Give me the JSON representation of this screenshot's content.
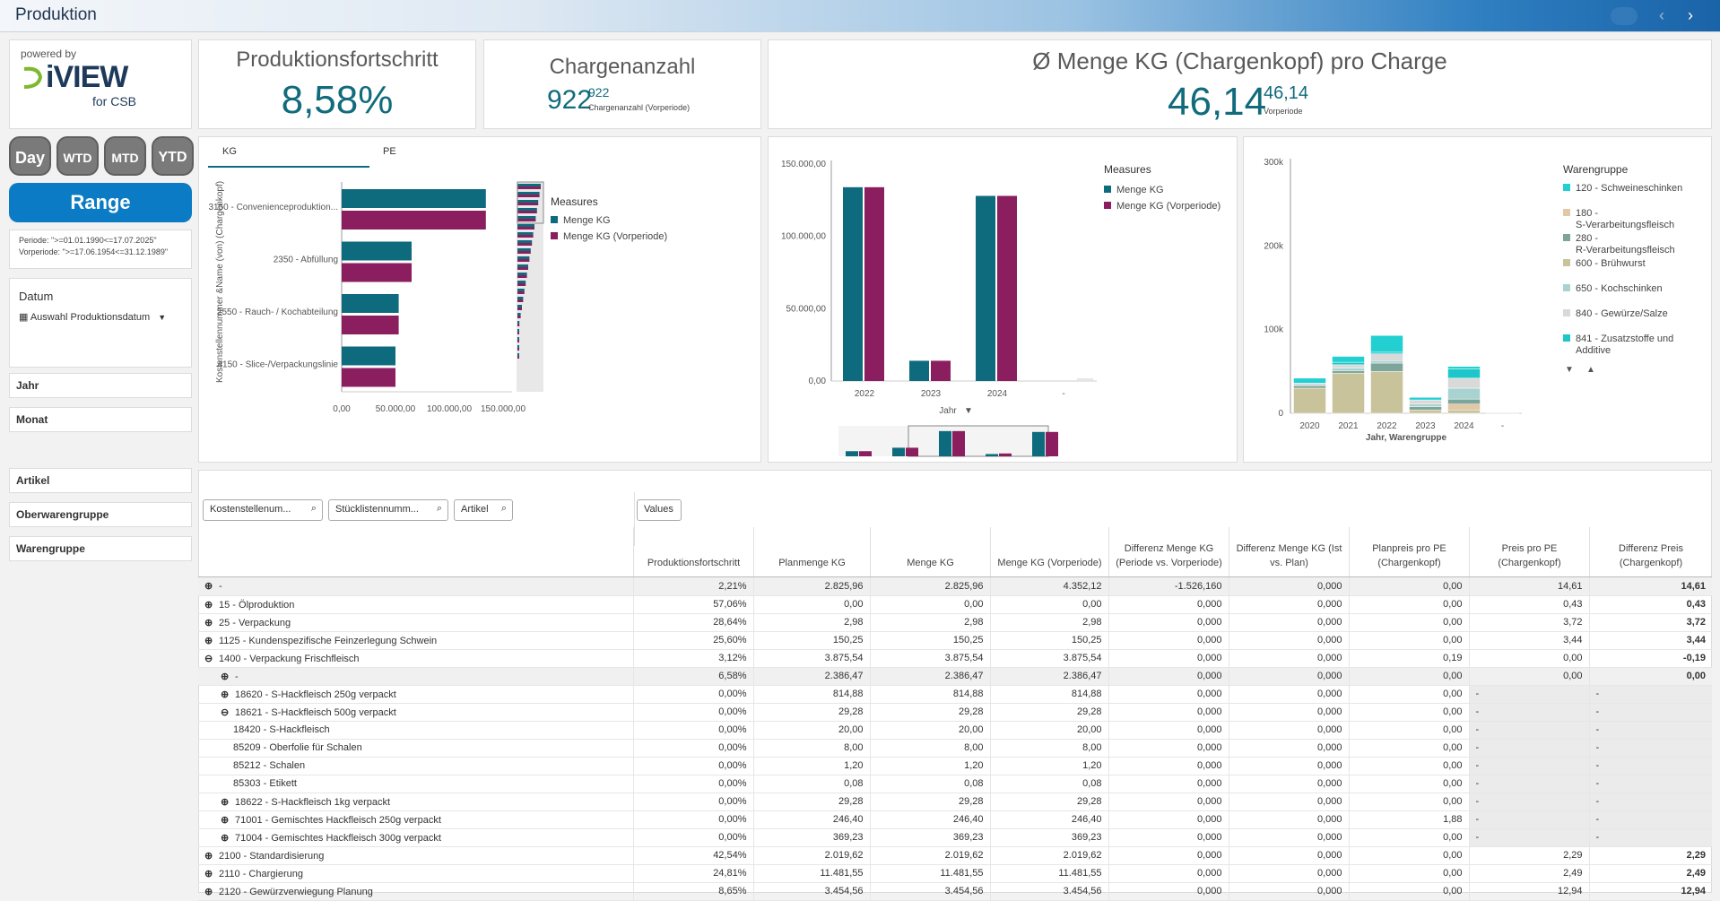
{
  "app": {
    "title": "Produktion"
  },
  "logo": {
    "powered_by": "powered by",
    "name": "iVIEW",
    "sub": "for CSB"
  },
  "kpis": [
    {
      "title": "Produktionsfortschritt",
      "value": "8,58%"
    },
    {
      "title": "Chargenanzahl",
      "value": "922",
      "sup": "922",
      "sub": "Chargenanzahl (Vorperiode)"
    },
    {
      "title": "Ø Menge KG (Chargenkopf) pro Charge",
      "value": "46,14",
      "sup": "46,14",
      "sub": "Vorperiode"
    }
  ],
  "period_buttons": [
    "Day",
    "WTD",
    "MTD",
    "YTD"
  ],
  "range_label": "Range",
  "period_info": {
    "line1": "Periode: \">=01.01.1990<=17.07.2025\"",
    "line2": "Vorperiode: \">=17.06.1954<=31.12.1989\""
  },
  "datum": {
    "title": "Datum",
    "selector": "Auswahl Produktionsdatum"
  },
  "filters": [
    "Jahr",
    "Monat",
    "Artikel",
    "Oberwarengruppe",
    "Warengruppe"
  ],
  "chart1_tabs": [
    "KG",
    "PE"
  ],
  "colors": {
    "teal": "#0e6b7e",
    "purple": "#8b1e5e",
    "accent": "#0a7bc4"
  },
  "chart_data": [
    {
      "type": "bar",
      "orientation": "horizontal",
      "ylabel": "Kostenstellennummer &Name (von) (Chargenkopf)",
      "categories": [
        "3150 - Convenienceproduktion...",
        "2350 - Abfüllung",
        "2550 - Rauch- / Kochabteilung",
        "4150 - Slice-/Verpackungslinie"
      ],
      "series": [
        {
          "name": "Menge KG",
          "values": [
            134000,
            65000,
            53000,
            50000
          ]
        },
        {
          "name": "Menge KG (Vorperiode)",
          "values": [
            134000,
            65000,
            53000,
            50000
          ]
        }
      ],
      "xticks": [
        "0,00",
        "50.000,00",
        "100.000,00",
        "150.000,00"
      ],
      "xlim": [
        0,
        150000
      ],
      "legend_title": "Measures"
    },
    {
      "type": "bar",
      "categories": [
        "2022",
        "2023",
        "2024",
        "-"
      ],
      "series": [
        {
          "name": "Menge KG",
          "values": [
            134000,
            14000,
            128000,
            0
          ]
        },
        {
          "name": "Menge KG (Vorperiode)",
          "values": [
            134000,
            14000,
            128000,
            0
          ]
        }
      ],
      "yticks": [
        "0,00",
        "50.000,00",
        "100.000,00",
        "150.000,00"
      ],
      "ylim": [
        0,
        150000
      ],
      "xlabel": "Jahr",
      "legend_title": "Measures"
    },
    {
      "type": "bar",
      "stacked": true,
      "categories": [
        "2020",
        "2021",
        "2022",
        "2023",
        "2024",
        "-"
      ],
      "xlabel": "Jahr, Warengruppe",
      "yticks": [
        "0",
        "100k",
        "200k",
        "300k"
      ],
      "ylim": [
        0,
        300000
      ],
      "legend_title": "Warengruppe",
      "series": [
        {
          "name": "600 - Brühwurst",
          "color": "#c8c39b",
          "values": [
            30000,
            48000,
            50000,
            4000,
            4000,
            0
          ]
        },
        {
          "name": "180 - S-Verarbeitungsfleisch",
          "color": "#e3c8a6",
          "values": [
            0,
            0,
            0,
            0,
            7000,
            0
          ]
        },
        {
          "name": "280 - R-Verarbeitungsfleisch",
          "color": "#7ea59a",
          "values": [
            3000,
            3000,
            10000,
            4000,
            6000,
            0
          ]
        },
        {
          "name": "650 - Kochschinken",
          "color": "#a8d3d1",
          "values": [
            0,
            3000,
            3000,
            3000,
            13000,
            0
          ]
        },
        {
          "name": "840 - Gewürze/Salze",
          "color": "#d9d9d9",
          "values": [
            3000,
            4000,
            8000,
            5000,
            12000,
            1000
          ]
        },
        {
          "name": "841 - Zusatzstoffe und Additive",
          "color": "#1dc7c9",
          "values": [
            0,
            3000,
            2000,
            0,
            11000,
            0
          ]
        },
        {
          "name": "120 - Schweineschinken",
          "color": "#22d0d2",
          "values": [
            6000,
            7000,
            20000,
            3000,
            3000,
            0
          ]
        }
      ]
    }
  ],
  "table": {
    "search_boxes": [
      "Kostenstellenum...",
      "Stücklistennumm...",
      "Artikel"
    ],
    "values_label": "Values",
    "columns": [
      "Produktionsfortschritt",
      "Planmenge KG",
      "Menge KG",
      "Menge KG (Vorperiode)",
      "Differenz Menge KG (Periode vs. Vorperiode)",
      "Differenz Menge KG (Ist vs. Plan)",
      "Planpreis pro PE (Chargenkopf)",
      "Preis pro PE (Chargenkopf)",
      "Differenz Preis (Chargenkopf)"
    ],
    "rows": [
      {
        "indent": 0,
        "icon": "+",
        "label": "-",
        "vals": [
          "2,21%",
          "2.825,96",
          "2.825,96",
          "4.352,12",
          "-1.526,160",
          "0,000",
          "0,00",
          "14,61",
          "14,61"
        ],
        "last": "red"
      },
      {
        "indent": 0,
        "icon": "+",
        "label": "15 - Ölproduktion",
        "vals": [
          "57,06%",
          "0,00",
          "0,00",
          "0,00",
          "0,000",
          "0,000",
          "0,00",
          "0,43",
          "0,43"
        ],
        "last": "red"
      },
      {
        "indent": 0,
        "icon": "+",
        "label": "25 - Verpackung",
        "vals": [
          "28,64%",
          "2,98",
          "2,98",
          "2,98",
          "0,000",
          "0,000",
          "0,00",
          "3,72",
          "3,72"
        ],
        "last": "red"
      },
      {
        "indent": 0,
        "icon": "+",
        "label": "1125 - Kundenspezifische Feinzerlegung Schwein",
        "vals": [
          "25,60%",
          "150,25",
          "150,25",
          "150,25",
          "0,000",
          "0,000",
          "0,00",
          "3,44",
          "3,44"
        ],
        "last": "red"
      },
      {
        "indent": 0,
        "icon": "−",
        "label": "1400 - Verpackung Frischfleisch",
        "vals": [
          "3,12%",
          "3.875,54",
          "3.875,54",
          "3.875,54",
          "0,000",
          "0,000",
          "0,19",
          "0,00",
          "-0,19"
        ],
        "last": "neg"
      },
      {
        "indent": 1,
        "icon": "+",
        "label": "-",
        "vals": [
          "6,58%",
          "2.386,47",
          "2.386,47",
          "2.386,47",
          "0,000",
          "0,000",
          "0,00",
          "0,00",
          "0,00"
        ],
        "last": "neg"
      },
      {
        "indent": 1,
        "icon": "+",
        "label": "18620 - S-Hackfleisch 250g verpackt",
        "vals": [
          "0,00%",
          "814,88",
          "814,88",
          "814,88",
          "0,000",
          "0,000",
          "0,00",
          "-",
          "-"
        ],
        "last": "dash"
      },
      {
        "indent": 1,
        "icon": "−",
        "label": "18621 - S-Hackfleisch 500g verpackt",
        "vals": [
          "0,00%",
          "29,28",
          "29,28",
          "29,28",
          "0,000",
          "0,000",
          "0,00",
          "-",
          "-"
        ],
        "last": "dash"
      },
      {
        "indent": 2,
        "icon": "",
        "label": "18420 - S-Hackfleisch",
        "vals": [
          "0,00%",
          "20,00",
          "20,00",
          "20,00",
          "0,000",
          "0,000",
          "0,00",
          "-",
          "-"
        ],
        "last": "dash"
      },
      {
        "indent": 2,
        "icon": "",
        "label": "85209 - Oberfolie für Schalen",
        "vals": [
          "0,00%",
          "8,00",
          "8,00",
          "8,00",
          "0,000",
          "0,000",
          "0,00",
          "-",
          "-"
        ],
        "last": "dash"
      },
      {
        "indent": 2,
        "icon": "",
        "label": "85212 - Schalen",
        "vals": [
          "0,00%",
          "1,20",
          "1,20",
          "1,20",
          "0,000",
          "0,000",
          "0,00",
          "-",
          "-"
        ],
        "last": "dash"
      },
      {
        "indent": 2,
        "icon": "",
        "label": "85303 - Etikett",
        "vals": [
          "0,00%",
          "0,08",
          "0,08",
          "0,08",
          "0,000",
          "0,000",
          "0,00",
          "-",
          "-"
        ],
        "last": "dash"
      },
      {
        "indent": 1,
        "icon": "+",
        "label": "18622 - S-Hackfleisch 1kg verpackt",
        "vals": [
          "0,00%",
          "29,28",
          "29,28",
          "29,28",
          "0,000",
          "0,000",
          "0,00",
          "-",
          "-"
        ],
        "last": "dash"
      },
      {
        "indent": 1,
        "icon": "+",
        "label": "71001 - Gemischtes Hackfleisch 250g verpackt",
        "vals": [
          "0,00%",
          "246,40",
          "246,40",
          "246,40",
          "0,000",
          "0,000",
          "1,88",
          "-",
          "-"
        ],
        "last": "dash"
      },
      {
        "indent": 1,
        "icon": "+",
        "label": "71004 - Gemischtes Hackfleisch 300g verpackt",
        "vals": [
          "0,00%",
          "369,23",
          "369,23",
          "369,23",
          "0,000",
          "0,000",
          "0,00",
          "-",
          "-"
        ],
        "last": "dash"
      },
      {
        "indent": 0,
        "icon": "+",
        "label": "2100 - Standardisierung",
        "vals": [
          "42,54%",
          "2.019,62",
          "2.019,62",
          "2.019,62",
          "0,000",
          "0,000",
          "0,00",
          "2,29",
          "2,29"
        ],
        "last": "red"
      },
      {
        "indent": 0,
        "icon": "+",
        "label": "2110 - Chargierung",
        "vals": [
          "24,81%",
          "11.481,55",
          "11.481,55",
          "11.481,55",
          "0,000",
          "0,000",
          "0,00",
          "2,49",
          "2,49"
        ],
        "last": "red"
      },
      {
        "indent": 0,
        "icon": "+",
        "label": "2120 - Gewürzverwiegung Planung",
        "vals": [
          "8,65%",
          "3.454,56",
          "3.454,56",
          "3.454,56",
          "0,000",
          "0,000",
          "0,00",
          "12,94",
          "12,94"
        ],
        "last": "red"
      }
    ]
  }
}
